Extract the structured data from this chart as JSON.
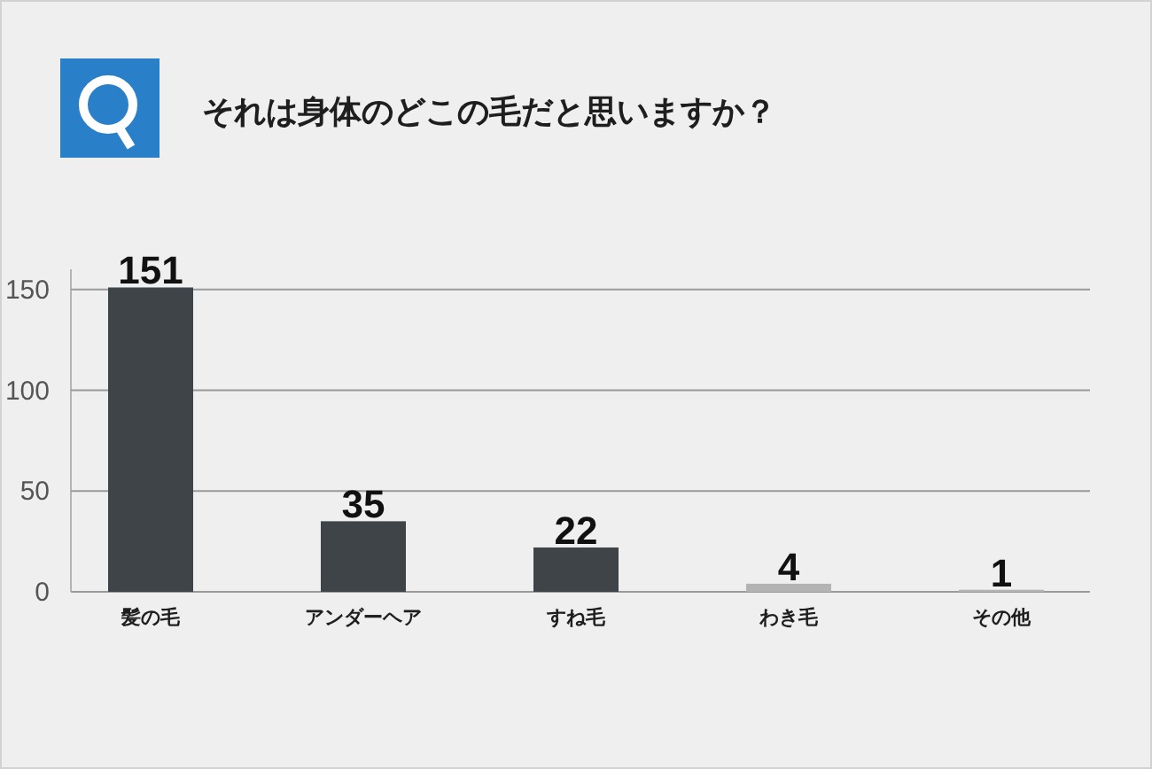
{
  "chart_data": {
    "type": "bar",
    "title": "それは身体のどこの毛だと思いますか？",
    "categories": [
      "髪の毛",
      "アンダーヘア",
      "すね毛",
      "わき毛",
      "その他"
    ],
    "values": [
      151,
      35,
      22,
      4,
      1
    ],
    "colors": [
      "#3f4449",
      "#3f4449",
      "#3f4449",
      "#b3b3b3",
      "#b3b3b3"
    ],
    "ylim": [
      0,
      160
    ],
    "yticks": [
      0,
      50,
      100,
      150
    ],
    "grid": "y",
    "data_labels": true
  }
}
